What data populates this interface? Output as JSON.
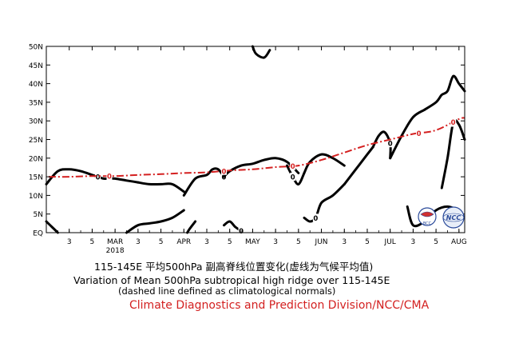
{
  "chart_data": {
    "type": "line",
    "title": "115-145E 平均500hPa 副高脊线位置变化(虚线为气候平均值)",
    "title_en": "Variation of Mean 500hPa subtropical high ridge over 115-145E",
    "subtitle": "(dashed line defined as climatological normals)",
    "credit": "Climate Diagnostics and Prediction Division/NCC/CMA",
    "y_ticks": [
      "EQ",
      "5N",
      "10N",
      "15N",
      "20N",
      "25N",
      "30N",
      "35N",
      "40N",
      "45N",
      "50N"
    ],
    "ylim": [
      0,
      50
    ],
    "x_ticks": [
      {
        "pos": 3,
        "label": "3"
      },
      {
        "pos": 5,
        "label": "5"
      },
      {
        "pos": 7,
        "label": "MAR",
        "sub": "2018"
      },
      {
        "pos": 9,
        "label": "3"
      },
      {
        "pos": 11,
        "label": "5"
      },
      {
        "pos": 13,
        "label": "APR"
      },
      {
        "pos": 15,
        "label": "3"
      },
      {
        "pos": 17,
        "label": "5"
      },
      {
        "pos": 19,
        "label": "MAY"
      },
      {
        "pos": 21,
        "label": "3"
      },
      {
        "pos": 23,
        "label": "5"
      },
      {
        "pos": 25,
        "label": "JUN"
      },
      {
        "pos": 27,
        "label": "3"
      },
      {
        "pos": 29,
        "label": "5"
      },
      {
        "pos": 31,
        "label": "JUL"
      },
      {
        "pos": 33,
        "label": "3"
      },
      {
        "pos": 35,
        "label": "5"
      },
      {
        "pos": 37,
        "label": "AUG"
      }
    ],
    "xlim": [
      1,
      37.5
    ],
    "x_unit": "pentad",
    "series": [
      {
        "style": "dashed",
        "color": "#d42020",
        "contour_label": "0",
        "label_points": [
          6.5,
          16.5,
          22.5,
          33.5,
          36.5
        ],
        "x": [
          1.2,
          3,
          5,
          7,
          9,
          11,
          13,
          15,
          17,
          19,
          21,
          23,
          25,
          27,
          29,
          31,
          33,
          35,
          37,
          37.5
        ],
        "values": [
          15,
          15,
          15.2,
          15.2,
          15.5,
          15.7,
          16,
          16.2,
          16.7,
          17,
          17.6,
          18,
          19.5,
          21.5,
          23.5,
          25,
          26.5,
          27.5,
          30.5,
          30.8
        ]
      }
    ],
    "contours": [
      {
        "label": "0",
        "label_at": 5.5,
        "x": [
          1,
          2,
          3,
          4,
          5,
          5.5,
          6,
          6.5,
          7,
          8,
          9
        ],
        "values": [
          13,
          16.5,
          17,
          16.5,
          15.5,
          15,
          14.5,
          14.5,
          14.5,
          14,
          13.5
        ]
      },
      {
        "x": [
          9,
          10,
          11,
          12,
          13
        ],
        "values": [
          13.5,
          13,
          13,
          13,
          11
        ]
      },
      {
        "x": [
          1,
          1.5,
          2
        ],
        "values": [
          3,
          1.5,
          0
        ]
      },
      {
        "x": [
          8,
          9,
          10,
          11,
          12,
          13
        ],
        "values": [
          0,
          2,
          2.5,
          3,
          4,
          6
        ]
      },
      {
        "x": [
          13.3,
          13.5,
          14
        ],
        "values": [
          0,
          1,
          3
        ]
      },
      {
        "label": "0",
        "label_at": 16.5,
        "x": [
          13,
          14,
          15,
          15.5,
          16,
          16.5
        ],
        "values": [
          10,
          14.5,
          15.5,
          17,
          17,
          15
        ]
      },
      {
        "x": [
          16.5,
          17,
          18,
          19,
          20,
          21,
          22,
          23
        ],
        "values": [
          15,
          16.5,
          18,
          18.5,
          19.5,
          20,
          19,
          16
        ]
      },
      {
        "label": "0",
        "label_at": 18,
        "x": [
          16.5,
          17,
          17.5,
          18
        ],
        "values": [
          2,
          3,
          1.5,
          0.5
        ]
      },
      {
        "label": "0",
        "label_at": 22.5,
        "x": [
          22,
          22.5,
          23,
          23.5
        ],
        "values": [
          18,
          15,
          13,
          16
        ]
      },
      {
        "x": [
          23.5,
          24,
          25,
          26,
          27
        ],
        "values": [
          16,
          19,
          21,
          20,
          18
        ]
      },
      {
        "label": "0",
        "label_at": 24.5,
        "x": [
          23.5,
          24,
          24.5,
          25,
          26,
          27
        ],
        "values": [
          4,
          3,
          4,
          8,
          10,
          13
        ]
      },
      {
        "x": [
          27,
          28,
          29,
          29.5
        ],
        "values": [
          13,
          17,
          21,
          23
        ]
      },
      {
        "label": "0",
        "label_at": 31,
        "x": [
          29.5,
          30,
          30.5,
          31,
          31
        ],
        "values": [
          23,
          26,
          27,
          24,
          20
        ]
      },
      {
        "x": [
          31,
          32,
          33,
          34
        ],
        "values": [
          20,
          26,
          31,
          33
        ]
      },
      {
        "x": [
          34,
          35,
          35.5,
          36,
          36.5,
          37,
          37.5
        ],
        "values": [
          33,
          35,
          37,
          38,
          42,
          40,
          38
        ]
      },
      {
        "label": "0",
        "label_at": 36.5,
        "x": [
          35.5,
          36,
          36.5,
          37,
          37.5
        ],
        "values": [
          12,
          20,
          29.5,
          29,
          25
        ]
      },
      {
        "x": [
          32.5,
          33,
          34,
          35,
          36,
          37
        ],
        "values": [
          7,
          2,
          3,
          6,
          7,
          6
        ]
      },
      {
        "x": [
          19,
          19.3,
          20,
          20.5
        ],
        "values": [
          50,
          48,
          47,
          49
        ]
      }
    ]
  },
  "logos": [
    "BCC",
    "NCC"
  ]
}
